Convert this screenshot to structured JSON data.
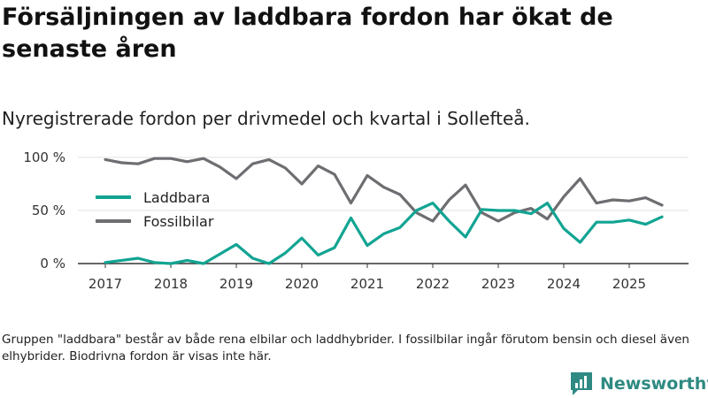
{
  "title": "Försäljningen av laddbara fordon har ökat de senaste åren",
  "subtitle": "Nyregistrerade fordon per drivmedel och kvartal i Sollefteå.",
  "footnote": "Gruppen \"laddbara\" består av både rena elbilar och laddhybrider. I fossilbilar ingår förutom bensin och diesel även elhybrider. Biodrivna fordon är visas inte här.",
  "brand": {
    "name": "Newsworthy",
    "icon": "newsworthy-logo-icon"
  },
  "chart_data": {
    "type": "line",
    "title": "Försäljningen av laddbara fordon har ökat de senaste åren",
    "subtitle": "Nyregistrerade fordon per drivmedel och kvartal i Sollefteå.",
    "xlabel": "",
    "ylabel": "",
    "ylim": [
      0,
      100
    ],
    "yticks": [
      0,
      50,
      100
    ],
    "ytick_labels": [
      "0 %",
      "50 %",
      "100 %"
    ],
    "grid": true,
    "legend": "left",
    "x_start": 2017.0,
    "x_step": 0.25,
    "xticks": [
      "2017",
      "2018",
      "2019",
      "2020",
      "2021",
      "2022",
      "2023",
      "2024",
      "2025"
    ],
    "series": [
      {
        "name": "Laddbara",
        "color": "#12a493",
        "values": [
          1,
          3,
          5,
          1,
          0,
          3,
          0,
          9,
          18,
          5,
          0,
          10,
          24,
          8,
          15,
          43,
          17,
          28,
          34,
          50,
          57,
          40,
          25,
          51,
          50,
          50,
          47,
          57,
          33,
          20,
          39,
          39,
          41,
          37,
          44
        ]
      },
      {
        "name": "Fossilbilar",
        "color": "#6e6e72",
        "values": [
          98,
          95,
          94,
          99,
          99,
          96,
          99,
          91,
          80,
          94,
          98,
          90,
          75,
          92,
          84,
          57,
          83,
          72,
          65,
          48,
          40,
          60,
          74,
          48,
          40,
          48,
          52,
          42,
          63,
          80,
          57,
          60,
          59,
          62,
          55
        ]
      }
    ]
  }
}
